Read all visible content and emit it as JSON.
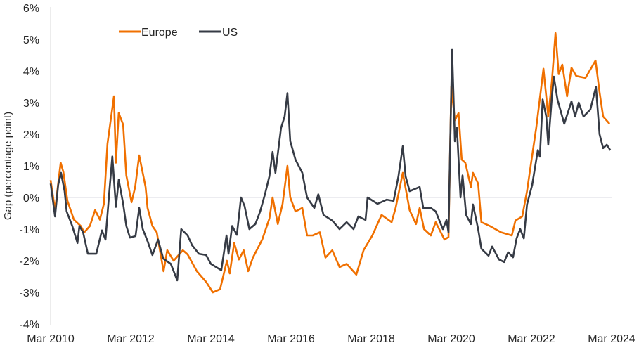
{
  "chart_data": {
    "type": "line",
    "title": "",
    "xlabel": "",
    "ylabel": "Gap (percentage point)",
    "ylim": [
      -4,
      6
    ],
    "xlim": [
      2010.17,
      2024.17
    ],
    "yticks": [
      {
        "value": 6,
        "label": "6%"
      },
      {
        "value": 5,
        "label": "5%"
      },
      {
        "value": 4,
        "label": "4%"
      },
      {
        "value": 3,
        "label": "3%"
      },
      {
        "value": 2,
        "label": "2%"
      },
      {
        "value": 1,
        "label": "1%"
      },
      {
        "value": 0,
        "label": "0%"
      },
      {
        "value": -1,
        "label": "-1%"
      },
      {
        "value": -2,
        "label": "-2%"
      },
      {
        "value": -3,
        "label": "-3%"
      },
      {
        "value": -4,
        "label": "-4%"
      }
    ],
    "xticks": [
      {
        "value": 2010.17,
        "label": "Mar 2010"
      },
      {
        "value": 2012.17,
        "label": "Mar 2012"
      },
      {
        "value": 2014.17,
        "label": "Mar 2014"
      },
      {
        "value": 2016.17,
        "label": "Mar 2016"
      },
      {
        "value": 2018.17,
        "label": "Mar 2018"
      },
      {
        "value": 2020.17,
        "label": "Mar 2020"
      },
      {
        "value": 2022.17,
        "label": "Mar 2022"
      },
      {
        "value": 2024.17,
        "label": "Mar 2024"
      }
    ],
    "grid": "zero line only",
    "legend_position": "top-left",
    "series": [
      {
        "name": "Europe",
        "color": "#f07000",
        "points": [
          [
            2010.17,
            0.55
          ],
          [
            2010.28,
            -0.4
          ],
          [
            2010.42,
            1.1
          ],
          [
            2010.49,
            0.8
          ],
          [
            2010.59,
            -0.1
          ],
          [
            2010.75,
            -0.7
          ],
          [
            2010.92,
            -0.9
          ],
          [
            2011.01,
            -1.1
          ],
          [
            2011.15,
            -0.9
          ],
          [
            2011.28,
            -0.4
          ],
          [
            2011.4,
            -0.7
          ],
          [
            2011.5,
            -0.2
          ],
          [
            2011.59,
            1.7
          ],
          [
            2011.75,
            3.2
          ],
          [
            2011.8,
            1.1
          ],
          [
            2011.87,
            2.67
          ],
          [
            2011.98,
            2.3
          ],
          [
            2012.06,
            0.7
          ],
          [
            2012.19,
            -0.15
          ],
          [
            2012.28,
            0.33
          ],
          [
            2012.38,
            1.33
          ],
          [
            2012.54,
            0.33
          ],
          [
            2012.59,
            -0.33
          ],
          [
            2012.71,
            -0.9
          ],
          [
            2012.82,
            -1.1
          ],
          [
            2012.99,
            -2.33
          ],
          [
            2013.08,
            -1.67
          ],
          [
            2013.24,
            -2.0
          ],
          [
            2013.47,
            -1.67
          ],
          [
            2013.59,
            -1.8
          ],
          [
            2013.82,
            -2.33
          ],
          [
            2014.05,
            -2.67
          ],
          [
            2014.22,
            -3.0
          ],
          [
            2014.4,
            -2.9
          ],
          [
            2014.57,
            -2.0
          ],
          [
            2014.64,
            -2.4
          ],
          [
            2014.75,
            -1.44
          ],
          [
            2014.87,
            -1.96
          ],
          [
            2014.99,
            -1.67
          ],
          [
            2015.1,
            -2.33
          ],
          [
            2015.22,
            -1.9
          ],
          [
            2015.45,
            -1.33
          ],
          [
            2015.63,
            -0.67
          ],
          [
            2015.71,
            0.0
          ],
          [
            2015.84,
            -0.84
          ],
          [
            2015.96,
            -0.2
          ],
          [
            2016.08,
            1.0
          ],
          [
            2016.15,
            0.0
          ],
          [
            2016.28,
            -0.44
          ],
          [
            2016.45,
            -0.33
          ],
          [
            2016.57,
            -1.2
          ],
          [
            2016.71,
            -1.2
          ],
          [
            2016.89,
            -1.1
          ],
          [
            2017.03,
            -1.9
          ],
          [
            2017.2,
            -1.67
          ],
          [
            2017.38,
            -2.2
          ],
          [
            2017.56,
            -2.1
          ],
          [
            2017.8,
            -2.44
          ],
          [
            2017.98,
            -1.67
          ],
          [
            2018.2,
            -1.2
          ],
          [
            2018.43,
            -0.55
          ],
          [
            2018.68,
            -0.78
          ],
          [
            2018.78,
            -0.33
          ],
          [
            2018.96,
            0.78
          ],
          [
            2019.13,
            -0.4
          ],
          [
            2019.29,
            -0.84
          ],
          [
            2019.38,
            -0.33
          ],
          [
            2019.49,
            -1.0
          ],
          [
            2019.66,
            -1.2
          ],
          [
            2019.78,
            -0.78
          ],
          [
            2020.0,
            -1.33
          ],
          [
            2020.1,
            -1.25
          ],
          [
            2020.17,
            3.5
          ],
          [
            2020.26,
            2.44
          ],
          [
            2020.35,
            2.67
          ],
          [
            2020.43,
            1.2
          ],
          [
            2020.52,
            1.1
          ],
          [
            2020.66,
            0.33
          ],
          [
            2020.71,
            0.78
          ],
          [
            2020.84,
            0.44
          ],
          [
            2020.92,
            -0.78
          ],
          [
            2021.13,
            -0.9
          ],
          [
            2021.41,
            -1.1
          ],
          [
            2021.68,
            -1.2
          ],
          [
            2021.77,
            -0.73
          ],
          [
            2021.94,
            -0.6
          ],
          [
            2022.06,
            0.2
          ],
          [
            2022.15,
            1.0
          ],
          [
            2022.29,
            2.2
          ],
          [
            2022.41,
            3.44
          ],
          [
            2022.47,
            4.07
          ],
          [
            2022.59,
            2.56
          ],
          [
            2022.68,
            3.67
          ],
          [
            2022.77,
            5.2
          ],
          [
            2022.85,
            3.9
          ],
          [
            2022.94,
            4.2
          ],
          [
            2023.06,
            3.2
          ],
          [
            2023.17,
            4.1
          ],
          [
            2023.29,
            3.84
          ],
          [
            2023.52,
            3.78
          ],
          [
            2023.77,
            4.33
          ],
          [
            2023.87,
            3.33
          ],
          [
            2023.96,
            2.56
          ],
          [
            2024.12,
            2.33
          ]
        ]
      },
      {
        "name": "US",
        "color": "#363b45",
        "points": [
          [
            2010.17,
            0.44
          ],
          [
            2010.28,
            -0.6
          ],
          [
            2010.36,
            0.4
          ],
          [
            2010.43,
            0.78
          ],
          [
            2010.52,
            0.2
          ],
          [
            2010.57,
            -0.44
          ],
          [
            2010.71,
            -0.9
          ],
          [
            2010.84,
            -1.44
          ],
          [
            2010.89,
            -0.9
          ],
          [
            2010.98,
            -1.1
          ],
          [
            2011.1,
            -1.78
          ],
          [
            2011.31,
            -1.78
          ],
          [
            2011.45,
            -1.04
          ],
          [
            2011.54,
            -1.33
          ],
          [
            2011.63,
            0.1
          ],
          [
            2011.71,
            1.3
          ],
          [
            2011.8,
            -0.3
          ],
          [
            2011.87,
            0.56
          ],
          [
            2011.98,
            -0.2
          ],
          [
            2012.06,
            -0.9
          ],
          [
            2012.15,
            -1.27
          ],
          [
            2012.29,
            -1.22
          ],
          [
            2012.38,
            -0.33
          ],
          [
            2012.47,
            -1.0
          ],
          [
            2012.59,
            -1.38
          ],
          [
            2012.71,
            -1.82
          ],
          [
            2012.85,
            -1.33
          ],
          [
            2012.98,
            -1.93
          ],
          [
            2013.17,
            -2.1
          ],
          [
            2013.33,
            -2.62
          ],
          [
            2013.43,
            -1.0
          ],
          [
            2013.59,
            -1.2
          ],
          [
            2013.7,
            -1.51
          ],
          [
            2013.87,
            -1.78
          ],
          [
            2014.05,
            -1.82
          ],
          [
            2014.17,
            -2.1
          ],
          [
            2014.43,
            -2.3
          ],
          [
            2014.56,
            -1.2
          ],
          [
            2014.61,
            -1.78
          ],
          [
            2014.7,
            -0.9
          ],
          [
            2014.82,
            -1.18
          ],
          [
            2014.92,
            0.0
          ],
          [
            2015.01,
            -0.27
          ],
          [
            2015.13,
            -1.0
          ],
          [
            2015.28,
            -0.84
          ],
          [
            2015.4,
            -0.44
          ],
          [
            2015.52,
            0.1
          ],
          [
            2015.63,
            0.67
          ],
          [
            2015.71,
            1.44
          ],
          [
            2015.78,
            0.78
          ],
          [
            2015.92,
            2.2
          ],
          [
            2016.01,
            2.56
          ],
          [
            2016.08,
            3.3
          ],
          [
            2016.15,
            1.78
          ],
          [
            2016.28,
            1.2
          ],
          [
            2016.45,
            0.78
          ],
          [
            2016.57,
            0.0
          ],
          [
            2016.75,
            -0.33
          ],
          [
            2016.85,
            0.1
          ],
          [
            2016.98,
            -0.55
          ],
          [
            2017.2,
            -0.73
          ],
          [
            2017.38,
            -1.0
          ],
          [
            2017.56,
            -0.78
          ],
          [
            2017.73,
            -1.0
          ],
          [
            2017.85,
            -0.6
          ],
          [
            2018.03,
            -0.71
          ],
          [
            2018.08,
            0.0
          ],
          [
            2018.33,
            -0.2
          ],
          [
            2018.56,
            -0.07
          ],
          [
            2018.73,
            -0.11
          ],
          [
            2018.85,
            0.67
          ],
          [
            2018.96,
            1.62
          ],
          [
            2019.03,
            0.67
          ],
          [
            2019.13,
            0.2
          ],
          [
            2019.38,
            0.33
          ],
          [
            2019.47,
            -0.33
          ],
          [
            2019.66,
            -0.33
          ],
          [
            2019.78,
            -0.44
          ],
          [
            2019.96,
            -1.0
          ],
          [
            2020.05,
            -0.71
          ],
          [
            2020.1,
            -1.1
          ],
          [
            2020.19,
            4.67
          ],
          [
            2020.26,
            1.78
          ],
          [
            2020.31,
            2.2
          ],
          [
            2020.4,
            0.0
          ],
          [
            2020.45,
            0.7
          ],
          [
            2020.54,
            -0.55
          ],
          [
            2020.66,
            -0.84
          ],
          [
            2020.71,
            -0.22
          ],
          [
            2020.84,
            -1.0
          ],
          [
            2020.92,
            -1.62
          ],
          [
            2021.1,
            -1.84
          ],
          [
            2021.19,
            -1.55
          ],
          [
            2021.36,
            -1.96
          ],
          [
            2021.49,
            -2.04
          ],
          [
            2021.59,
            -1.73
          ],
          [
            2021.71,
            -1.89
          ],
          [
            2021.8,
            -1.29
          ],
          [
            2021.89,
            -1.0
          ],
          [
            2021.98,
            -1.29
          ],
          [
            2022.06,
            -0.22
          ],
          [
            2022.19,
            0.4
          ],
          [
            2022.33,
            1.5
          ],
          [
            2022.38,
            1.29
          ],
          [
            2022.45,
            3.1
          ],
          [
            2022.54,
            2.56
          ],
          [
            2022.59,
            1.67
          ],
          [
            2022.68,
            3.18
          ],
          [
            2022.73,
            3.82
          ],
          [
            2022.82,
            3.1
          ],
          [
            2022.99,
            2.33
          ],
          [
            2023.17,
            3.04
          ],
          [
            2023.26,
            2.56
          ],
          [
            2023.35,
            3.0
          ],
          [
            2023.47,
            2.56
          ],
          [
            2023.64,
            2.78
          ],
          [
            2023.78,
            3.5
          ],
          [
            2023.87,
            2.0
          ],
          [
            2023.96,
            1.56
          ],
          [
            2024.05,
            1.67
          ],
          [
            2024.14,
            1.49
          ]
        ]
      }
    ]
  }
}
